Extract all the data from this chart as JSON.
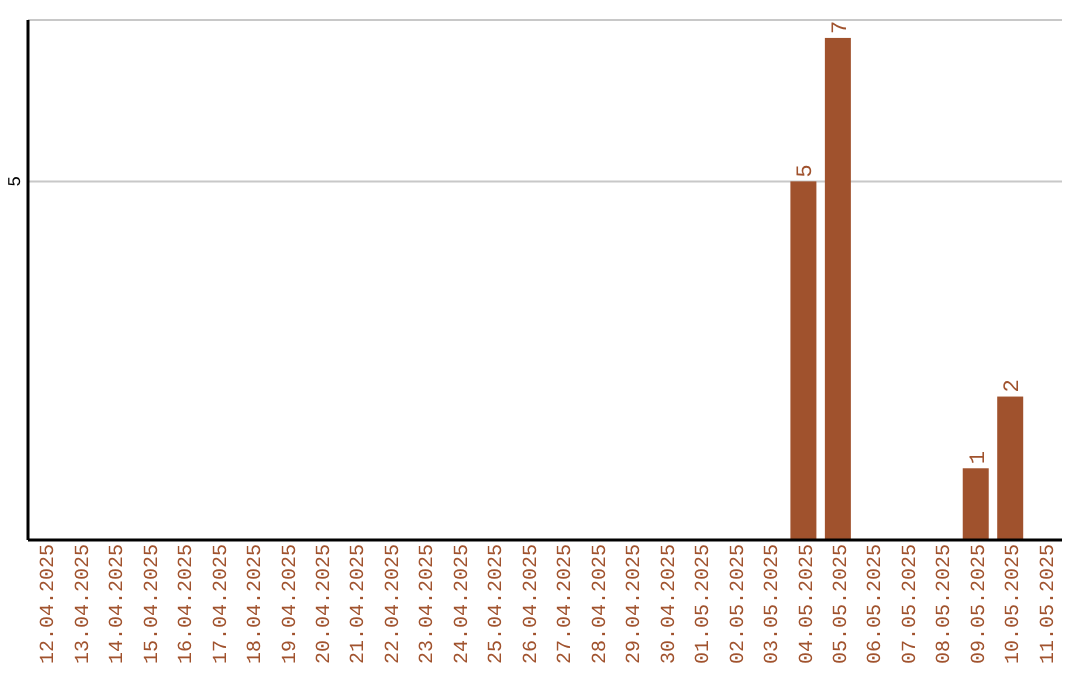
{
  "chart_data": {
    "type": "bar",
    "categories": [
      "12.04.2025",
      "13.04.2025",
      "14.04.2025",
      "15.04.2025",
      "16.04.2025",
      "17.04.2025",
      "18.04.2025",
      "19.04.2025",
      "20.04.2025",
      "21.04.2025",
      "22.04.2025",
      "23.04.2025",
      "24.04.2025",
      "25.04.2025",
      "26.04.2025",
      "27.04.2025",
      "28.04.2025",
      "29.04.2025",
      "30.04.2025",
      "01.05.2025",
      "02.05.2025",
      "03.05.2025",
      "04.05.2025",
      "05.05.2025",
      "06.05.2025",
      "07.05.2025",
      "08.05.2025",
      "09.05.2025",
      "10.05.2025",
      "11.05.2025"
    ],
    "values": [
      null,
      null,
      null,
      null,
      null,
      null,
      null,
      null,
      null,
      null,
      null,
      null,
      null,
      null,
      null,
      null,
      null,
      null,
      null,
      null,
      null,
      null,
      5,
      7,
      null,
      null,
      null,
      1,
      2,
      null
    ],
    "value_labels": [
      null,
      null,
      null,
      null,
      null,
      null,
      null,
      null,
      null,
      null,
      null,
      null,
      null,
      null,
      null,
      null,
      null,
      null,
      null,
      null,
      null,
      null,
      "5",
      "7",
      null,
      null,
      null,
      "1",
      "2",
      null
    ],
    "color": "#a0522d",
    "ylim": [
      0,
      7.25
    ],
    "yticks": [
      5
    ],
    "grid": "y"
  }
}
